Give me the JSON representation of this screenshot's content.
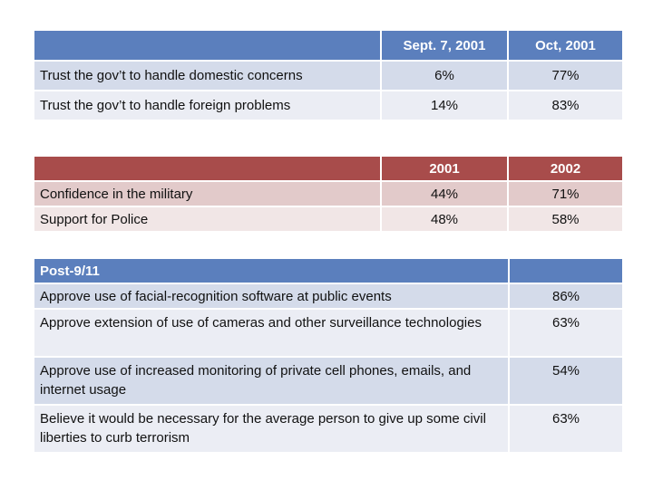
{
  "table1": {
    "headers": [
      "",
      "Sept. 7, 2001",
      "Oct, 2001"
    ],
    "rows": [
      {
        "label": "Trust the gov’t to handle domestic concerns",
        "v1": "6%",
        "v2": "77%"
      },
      {
        "label": "Trust the gov’t to handle foreign problems",
        "v1": "14%",
        "v2": "83%"
      }
    ],
    "header_color": "#5b7fbd"
  },
  "table2": {
    "headers": [
      "",
      "2001",
      "2002"
    ],
    "rows": [
      {
        "label": "Confidence in the military",
        "v1": "44%",
        "v2": "71%"
      },
      {
        "label": "Support for Police",
        "v1": "48%",
        "v2": "58%"
      }
    ],
    "header_color": "#a84c4b"
  },
  "table3": {
    "headers": [
      "Post-9/11",
      ""
    ],
    "rows": [
      {
        "label": "Approve use of facial-recognition software at public events",
        "v": "86%"
      },
      {
        "label": "Approve extension of use of cameras and other surveillance technologies",
        "v": "63%"
      },
      {
        "label": "Approve use of increased monitoring of private cell phones, emails, and internet usage",
        "v": "54%"
      },
      {
        "label": "Believe it would be necessary for the average person to give up some civil liberties to curb terrorism",
        "v": "63%"
      }
    ],
    "header_color": "#5b7fbd"
  }
}
